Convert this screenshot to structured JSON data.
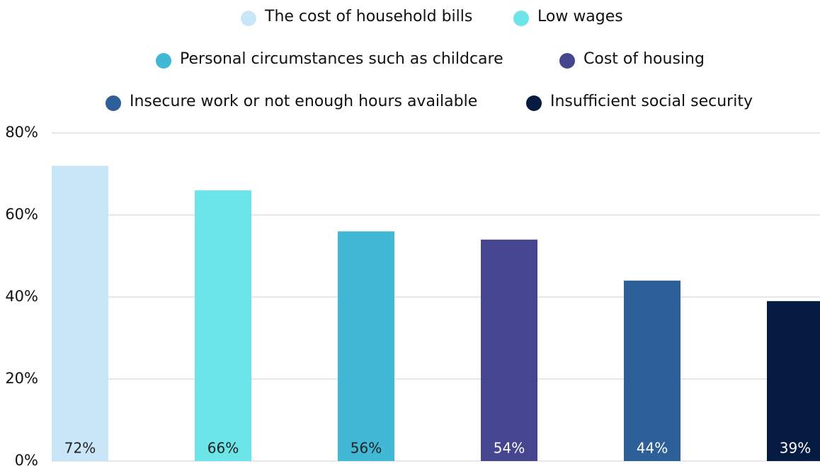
{
  "chart_data": {
    "type": "bar",
    "categories": [
      null
    ],
    "series": [
      {
        "name": "The cost of household bills",
        "color": "#c9e6f9",
        "values": [
          72
        ],
        "value_labels": [
          "72%"
        ]
      },
      {
        "name": "Low wages",
        "color": "#6ce5e8",
        "values": [
          66
        ],
        "value_labels": [
          "66%"
        ]
      },
      {
        "name": "Personal circumstances such as childcare",
        "color": "#41b8d5",
        "values": [
          56
        ],
        "value_labels": [
          "56%"
        ]
      },
      {
        "name": "Cost of housing",
        "color": "#45468f",
        "values": [
          54
        ],
        "value_labels": [
          "54%"
        ]
      },
      {
        "name": "Insecure work or not enough hours available",
        "color": "#2d5f98",
        "values": [
          44
        ],
        "value_labels": [
          "44%"
        ]
      },
      {
        "name": "Insufficient social security",
        "color": "#061b42",
        "values": [
          39
        ],
        "value_labels": [
          "39%"
        ]
      }
    ],
    "ylim": [
      0,
      80
    ],
    "yticks": [
      {
        "value": 0,
        "label": "0%"
      },
      {
        "value": 20,
        "label": "20%"
      },
      {
        "value": 40,
        "label": "40%"
      },
      {
        "value": 60,
        "label": "60%"
      },
      {
        "value": 80,
        "label": "80%"
      }
    ],
    "grid": true,
    "legend": "top"
  }
}
